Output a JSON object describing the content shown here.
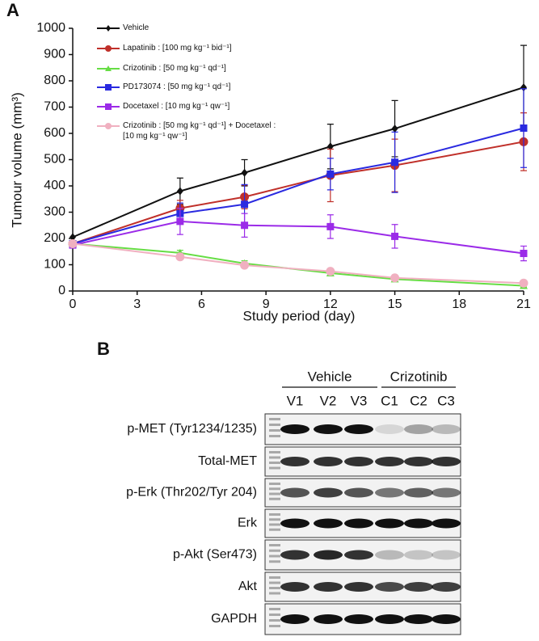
{
  "panel_a_label": "A",
  "panel_b_label": "B",
  "chart_data": {
    "type": "line",
    "x_label": "Study period (day)",
    "y_label": "Tumour volume (mm³)",
    "x": [
      0,
      5,
      8,
      12,
      15,
      21
    ],
    "xlim": [
      0,
      21
    ],
    "xticks": [
      0,
      3,
      6,
      9,
      12,
      15,
      18,
      21
    ],
    "ylim": [
      0,
      1000
    ],
    "yticks": [
      0,
      100,
      200,
      300,
      400,
      500,
      600,
      700,
      800,
      900,
      1000
    ],
    "series": [
      {
        "name": "Vehicle",
        "color": "#111111",
        "marker": "diamond",
        "values": [
          205,
          380,
          450,
          550,
          618,
          775
        ],
        "errors": [
          0,
          50,
          50,
          85,
          107,
          160
        ]
      },
      {
        "name": "Lapatinib : [100 mg kg⁻¹ bid⁻¹]",
        "color": "#c0302a",
        "marker": "circle",
        "values": [
          180,
          315,
          358,
          440,
          478,
          568
        ],
        "errors": [
          0,
          30,
          45,
          100,
          100,
          110
        ]
      },
      {
        "name": "Crizotinib : [50 mg kg⁻¹ qd⁻¹]",
        "color": "#66dd44",
        "marker": "triangle",
        "values": [
          180,
          145,
          105,
          68,
          45,
          20
        ],
        "errors": [
          0,
          10,
          10,
          8,
          6,
          5
        ]
      },
      {
        "name": "PD173074 : [50 mg kg⁻¹ qd⁻¹]",
        "color": "#2a2ae0",
        "marker": "square",
        "values": [
          180,
          295,
          330,
          445,
          490,
          620
        ],
        "errors": [
          0,
          40,
          75,
          60,
          115,
          150
        ]
      },
      {
        "name": "Docetaxel : [10 mg kg⁻¹ qw⁻¹]",
        "color": "#9b2be8",
        "marker": "square",
        "values": [
          175,
          265,
          250,
          245,
          208,
          143
        ],
        "errors": [
          0,
          50,
          45,
          45,
          45,
          28
        ]
      },
      {
        "name": "Crizotinib : [50 mg kg⁻¹ qd⁻¹] + Docetaxel : [10 mg kg⁻¹ qw⁻¹]",
        "color": "#f0b0c0",
        "marker": "circle",
        "values": [
          180,
          130,
          98,
          75,
          50,
          30
        ],
        "errors": [
          0,
          10,
          8,
          7,
          5,
          4
        ]
      }
    ]
  },
  "blot": {
    "groups": [
      "Vehicle",
      "Crizotinib"
    ],
    "lanes": [
      "V1",
      "V2",
      "V3",
      "C1",
      "C2",
      "C3"
    ],
    "rows": [
      "p-MET (Tyr1234/1235)",
      "Total-MET",
      "p-Erk (Thr202/Tyr 204)",
      "Erk",
      "p-Akt (Ser473)",
      "Akt",
      "GAPDH"
    ]
  }
}
